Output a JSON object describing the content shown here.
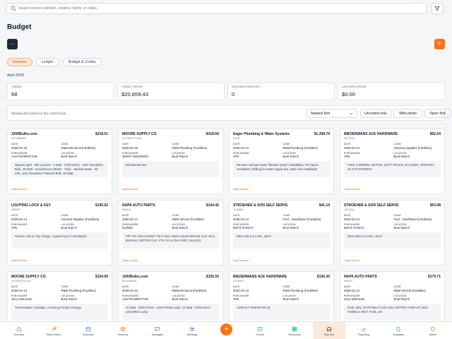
{
  "search": {
    "placeholder": "Search invoice numbers, vendors, items, or codes"
  },
  "page": {
    "title": "Budget",
    "more_label": "···",
    "add_label": "+"
  },
  "tabs": [
    {
      "label": "Invoices",
      "active": true
    },
    {
      "label": "Ledger",
      "active": false
    },
    {
      "label": "Budget & Codes",
      "active": false
    }
  ],
  "period": "April 2026",
  "stats": [
    {
      "label": "VISIBLE",
      "value": "68"
    },
    {
      "label": "VISIBLE SPEND",
      "value": "$20,859.43"
    },
    {
      "label": "UNCODED INVOICES",
      "value": "0"
    },
    {
      "label": "UNCODED SPEND",
      "value": "$0.00"
    }
  ],
  "toolbar": {
    "summary": "Showing 68 invoices in the current view",
    "sort_value": "Newest first",
    "uncoded_only": "Uncoded only",
    "with_photo": "With photo",
    "open_first": "Open first"
  },
  "field_labels": {
    "date": "DATE",
    "code": "CODE",
    "purchaser": "PURCHASER",
    "location": "LOCATION",
    "open": "Open invoice"
  },
  "invoices": [
    {
      "vendor": "1000Bulbs.com",
      "amount": "$218.51",
      "number": "INV1086986",
      "date": "2026-04-15",
      "code": "R&M Electrical (Facilities)",
      "purchaser": "AUSTIN BRATTON",
      "location": "Boot Ranch",
      "description": "Natural Light - 300 Lumens - 4 Watt - 2700 Kelvin - LED Chandelier Bulb, 40 Watt - Incandescent Match - Clear - Medium Base - 90 CRI, LED Chandelier Filament Bulb, 25 Watt..."
    },
    {
      "vendor": "MOORE SUPPLY CO.",
      "amount": "-$318.69",
      "number": "S179602172.001",
      "date": "2026-04-15",
      "code": "R&M Plumbing (Facilities)",
      "purchaser": "JERRY EDMONDS",
      "location": "Boot Ranch",
      "description": "Reimbursement"
    },
    {
      "vendor": "Eager Plumbing & Water Systems",
      "amount": "$1,358.79",
      "number": "51523",
      "date": "2026-04-14",
      "code": "R&M Plumbing (Facilities)",
      "purchaser": "ATB",
      "location": "Boot Ranch",
      "description": "Reverse osmosis water filtration system installation, RO faucet installation, Drilling for water supply line, Drain line installation"
    },
    {
      "vendor": "BIEDERMANS ACE HARDWARE",
      "amount": "$52.54",
      "number": "327133/1",
      "date": "2026-04-14",
      "code": "General Supplies (Facilities)",
      "purchaser": "ATB",
      "location": "Boot Ranch",
      "description": "TAPE LABREEN, WHT/ZX, BUTT SPLICE 16-14AWG, SPRYPNT 2X SAT EXPRESS"
    },
    {
      "vendor": "LIGHTING LOCK & KEY",
      "amount": "$195.62",
      "number": "455629",
      "date": "2026-04-14",
      "code": "General Supplies (Facilities)",
      "purchaser": "ATB",
      "location": "Boot Ranch",
      "description": "Service Call w/ Trip Charge, Copied Keys C145 Blanks"
    },
    {
      "vendor": "NAPA AUTO PARTS",
      "amount": "$104.42",
      "number": "894419",
      "date": "2026-04-14",
      "code": "R&M Vehicle (Facilities)",
      "purchaser": "facilities",
      "location": "Boot Ranch",
      "description": "FPF OIL PAN GASKET SET, MAC NON-CHLOR BRAKE CLR, MAC BKR-ELC MOTOR CLR, FTK FX ULTRA GREY SILICON"
    },
    {
      "vendor": "STROEHER & SON SELF SERVE",
      "amount": "$41.19",
      "number": "1011806",
      "date": "2026-04-14",
      "code": "Fuel - Gas/Diesel (Facilities)",
      "purchaser": "BOOT RANCH",
      "location": "Boot Ranch",
      "description": "REG UNLD CA #01, SELF"
    },
    {
      "vendor": "STROEHER & SON SELF SERVE",
      "amount": "$53.98",
      "number": "1011404",
      "date": "2026-04-14",
      "code": "Fuel - Gas/Diesel (Facilities)",
      "purchaser": "BOOT RANCH",
      "location": "Boot Ranch",
      "description": "REG UNLD CA #01, SELF"
    },
    {
      "vendor": "MOORE SUPPLY CO.",
      "amount": "$334.99",
      "number": "S179063723.001",
      "date": "2026-04-13",
      "code": "R&M Plumbing (Facilities)",
      "purchaser": "Jerry Edmonds",
      "location": "Boot Ranch",
      "description": "Thermodastic Cartridge, Incoming Freight Charges"
    },
    {
      "vendor": "1000Bulbs.com",
      "amount": "$155.50",
      "number": "INV1086591",
      "date": "2026-04-13",
      "code": "R&M Electrical (Facilities)",
      "purchaser": "AUSTIN BRATTON",
      "location": "Boot Ranch",
      "description": "15 Watt - 3000 Kelvin - LED PAR38 Lamp, 12 Watt - 2700 Kelvin - LED BR40 Lamp"
    },
    {
      "vendor": "BIEDERMANS ACE HARDWARE",
      "amount": "$136.35",
      "number": "327100/1",
      "date": "2026-04-13",
      "code": "R&M Plumbing (Facilities)",
      "purchaser": "ATB",
      "location": "Boot Ranch",
      "description": "ASPHALT REPAIR 50 LB"
    },
    {
      "vendor": "NAPA AUTO PARTS",
      "amount": "$179.71",
      "number": "895167",
      "date": "2026-04-13",
      "code": "R&M Vehicle (Facilities)",
      "purchaser": "Jerry Edmonds",
      "location": "Boot Ranch",
      "description": "FUEL (50), STARTING FLUID 1102, MOTOR TUNE-UP 1602, TOWELS 40CT, FUEL LIN"
    }
  ],
  "nav": [
    {
      "label": "Overview",
      "icon": "home-icon"
    },
    {
      "label": "Work Orders",
      "icon": "wrench-icon"
    },
    {
      "label": "Schedule",
      "icon": "calendar-icon"
    },
    {
      "label": "Inventory",
      "icon": "box-icon"
    },
    {
      "label": "Messages",
      "icon": "chat-icon"
    },
    {
      "label": "Meetings",
      "icon": "users-icon"
    },
    {
      "label": "Events",
      "icon": "event-icon"
    },
    {
      "label": "Resources",
      "icon": "resources-icon"
    },
    {
      "label": "Task Box",
      "icon": "inbox-icon",
      "active": true
    },
    {
      "label": "Reporting",
      "icon": "reporting-icon"
    },
    {
      "label": "Templates",
      "icon": "templates-icon"
    },
    {
      "label": "Admin",
      "icon": "admin-icon"
    }
  ],
  "fab_label": "+",
  "colors": {
    "accent": "#f97316",
    "dark_button": "#1e293b",
    "active_tab_bg": "#fde9d9",
    "link": "#ea580c"
  }
}
